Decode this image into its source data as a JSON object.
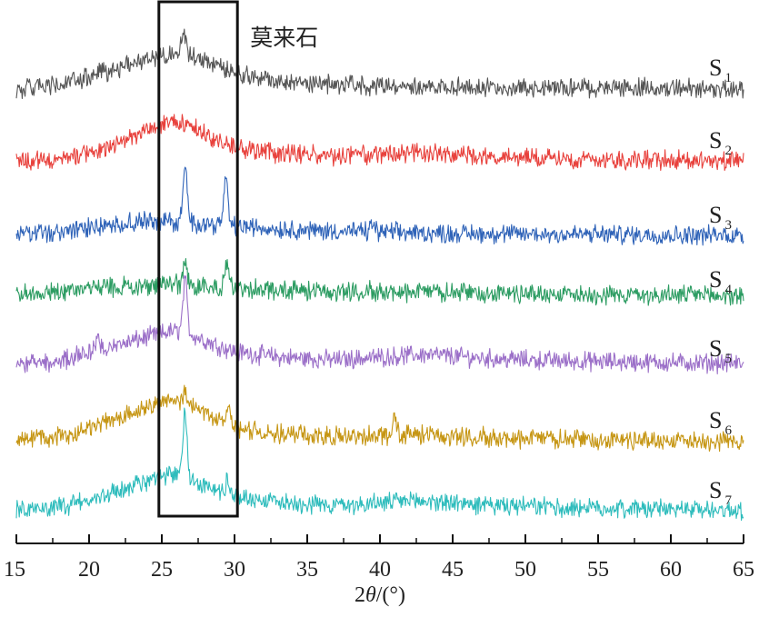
{
  "chart_data": {
    "type": "line",
    "xlabel": "2θ/(°)",
    "xlabel_parts": [
      "2",
      "θ",
      "/(°)"
    ],
    "xlim": [
      15,
      65
    ],
    "xticks": [
      15,
      20,
      25,
      30,
      35,
      40,
      45,
      50,
      55,
      60,
      65
    ],
    "y_axis_shown": false,
    "annotation": {
      "text": "莫来石",
      "x_range": [
        24.8,
        30.2
      ]
    },
    "series": [
      {
        "name": "S1",
        "label_main": "S",
        "label_sub": "1",
        "color": "#555555",
        "profile": [
          [
            15,
            0.08
          ],
          [
            18,
            0.16
          ],
          [
            20,
            0.33
          ],
          [
            22,
            0.55
          ],
          [
            24,
            0.74
          ],
          [
            25.5,
            0.86
          ],
          [
            26.5,
            0.9
          ],
          [
            28,
            0.7
          ],
          [
            30,
            0.42
          ],
          [
            33,
            0.26
          ],
          [
            37,
            0.18
          ],
          [
            45,
            0.12
          ],
          [
            55,
            0.1
          ],
          [
            65,
            0.08
          ]
        ],
        "peaks": [
          [
            26.5,
            0.45
          ]
        ]
      },
      {
        "name": "S2",
        "label_main": "S",
        "label_sub": "2",
        "color": "#e8413c",
        "profile": [
          [
            15,
            0.1
          ],
          [
            18,
            0.12
          ],
          [
            20,
            0.28
          ],
          [
            22,
            0.5
          ],
          [
            24,
            0.78
          ],
          [
            25.8,
            0.98
          ],
          [
            27,
            0.85
          ],
          [
            28.5,
            0.58
          ],
          [
            30,
            0.38
          ],
          [
            33,
            0.26
          ],
          [
            37,
            0.2
          ],
          [
            43,
            0.26
          ],
          [
            48,
            0.18
          ],
          [
            55,
            0.14
          ],
          [
            65,
            0.1
          ]
        ],
        "peaks": []
      },
      {
        "name": "S3",
        "label_main": "S",
        "label_sub": "3",
        "color": "#2f63b8",
        "profile": [
          [
            15,
            0.08
          ],
          [
            18,
            0.12
          ],
          [
            20,
            0.22
          ],
          [
            23,
            0.34
          ],
          [
            25,
            0.38
          ],
          [
            27,
            0.34
          ],
          [
            29,
            0.3
          ],
          [
            32,
            0.22
          ],
          [
            36,
            0.16
          ],
          [
            45,
            0.1
          ],
          [
            55,
            0.08
          ],
          [
            65,
            0.06
          ]
        ],
        "peaks": [
          [
            26.6,
            1.25
          ],
          [
            29.4,
            1.0
          ],
          [
            39.5,
            0.18
          ]
        ]
      },
      {
        "name": "S4",
        "label_main": "S",
        "label_sub": "4",
        "color": "#2c9c62",
        "profile": [
          [
            15,
            0.1
          ],
          [
            18,
            0.14
          ],
          [
            20,
            0.2
          ],
          [
            23,
            0.26
          ],
          [
            25,
            0.3
          ],
          [
            27,
            0.28
          ],
          [
            30,
            0.22
          ],
          [
            35,
            0.16
          ],
          [
            45,
            0.12
          ],
          [
            55,
            0.08
          ],
          [
            65,
            0.05
          ]
        ],
        "peaks": [
          [
            26.6,
            0.52
          ],
          [
            29.5,
            0.55
          ]
        ]
      },
      {
        "name": "S5",
        "label_main": "S",
        "label_sub": "5",
        "color": "#9b6fc8",
        "profile": [
          [
            15,
            0.1
          ],
          [
            18,
            0.16
          ],
          [
            20,
            0.32
          ],
          [
            22,
            0.5
          ],
          [
            24,
            0.68
          ],
          [
            25.5,
            0.8
          ],
          [
            26.5,
            0.82
          ],
          [
            28,
            0.6
          ],
          [
            30,
            0.36
          ],
          [
            33,
            0.24
          ],
          [
            37,
            0.18
          ],
          [
            43,
            0.3
          ],
          [
            48,
            0.2
          ],
          [
            55,
            0.14
          ],
          [
            65,
            0.1
          ]
        ],
        "peaks": [
          [
            20.6,
            0.3
          ],
          [
            26.6,
            1.1
          ]
        ]
      },
      {
        "name": "S6",
        "label_main": "S",
        "label_sub": "6",
        "color": "#c69614",
        "profile": [
          [
            15,
            0.1
          ],
          [
            18,
            0.2
          ],
          [
            20,
            0.36
          ],
          [
            22,
            0.6
          ],
          [
            24,
            0.84
          ],
          [
            25.8,
            0.98
          ],
          [
            27,
            0.9
          ],
          [
            28.5,
            0.6
          ],
          [
            30,
            0.38
          ],
          [
            33,
            0.24
          ],
          [
            37,
            0.2
          ],
          [
            43,
            0.24
          ],
          [
            48,
            0.16
          ],
          [
            55,
            0.12
          ],
          [
            65,
            0.1
          ]
        ],
        "peaks": [
          [
            26.6,
            0.2
          ],
          [
            29.6,
            0.4
          ],
          [
            41,
            0.4
          ]
        ]
      },
      {
        "name": "S7",
        "label_main": "S",
        "label_sub": "7",
        "color": "#2ebcbc",
        "profile": [
          [
            15,
            0.1
          ],
          [
            18,
            0.18
          ],
          [
            20,
            0.3
          ],
          [
            22,
            0.52
          ],
          [
            24,
            0.72
          ],
          [
            25.5,
            0.84
          ],
          [
            26.5,
            0.9
          ],
          [
            28,
            0.6
          ],
          [
            30,
            0.4
          ],
          [
            33,
            0.28
          ],
          [
            37,
            0.2
          ],
          [
            43,
            0.3
          ],
          [
            48,
            0.18
          ],
          [
            55,
            0.14
          ],
          [
            65,
            0.1
          ]
        ],
        "peaks": [
          [
            26.6,
            1.4
          ],
          [
            29.5,
            0.3
          ]
        ]
      }
    ]
  }
}
